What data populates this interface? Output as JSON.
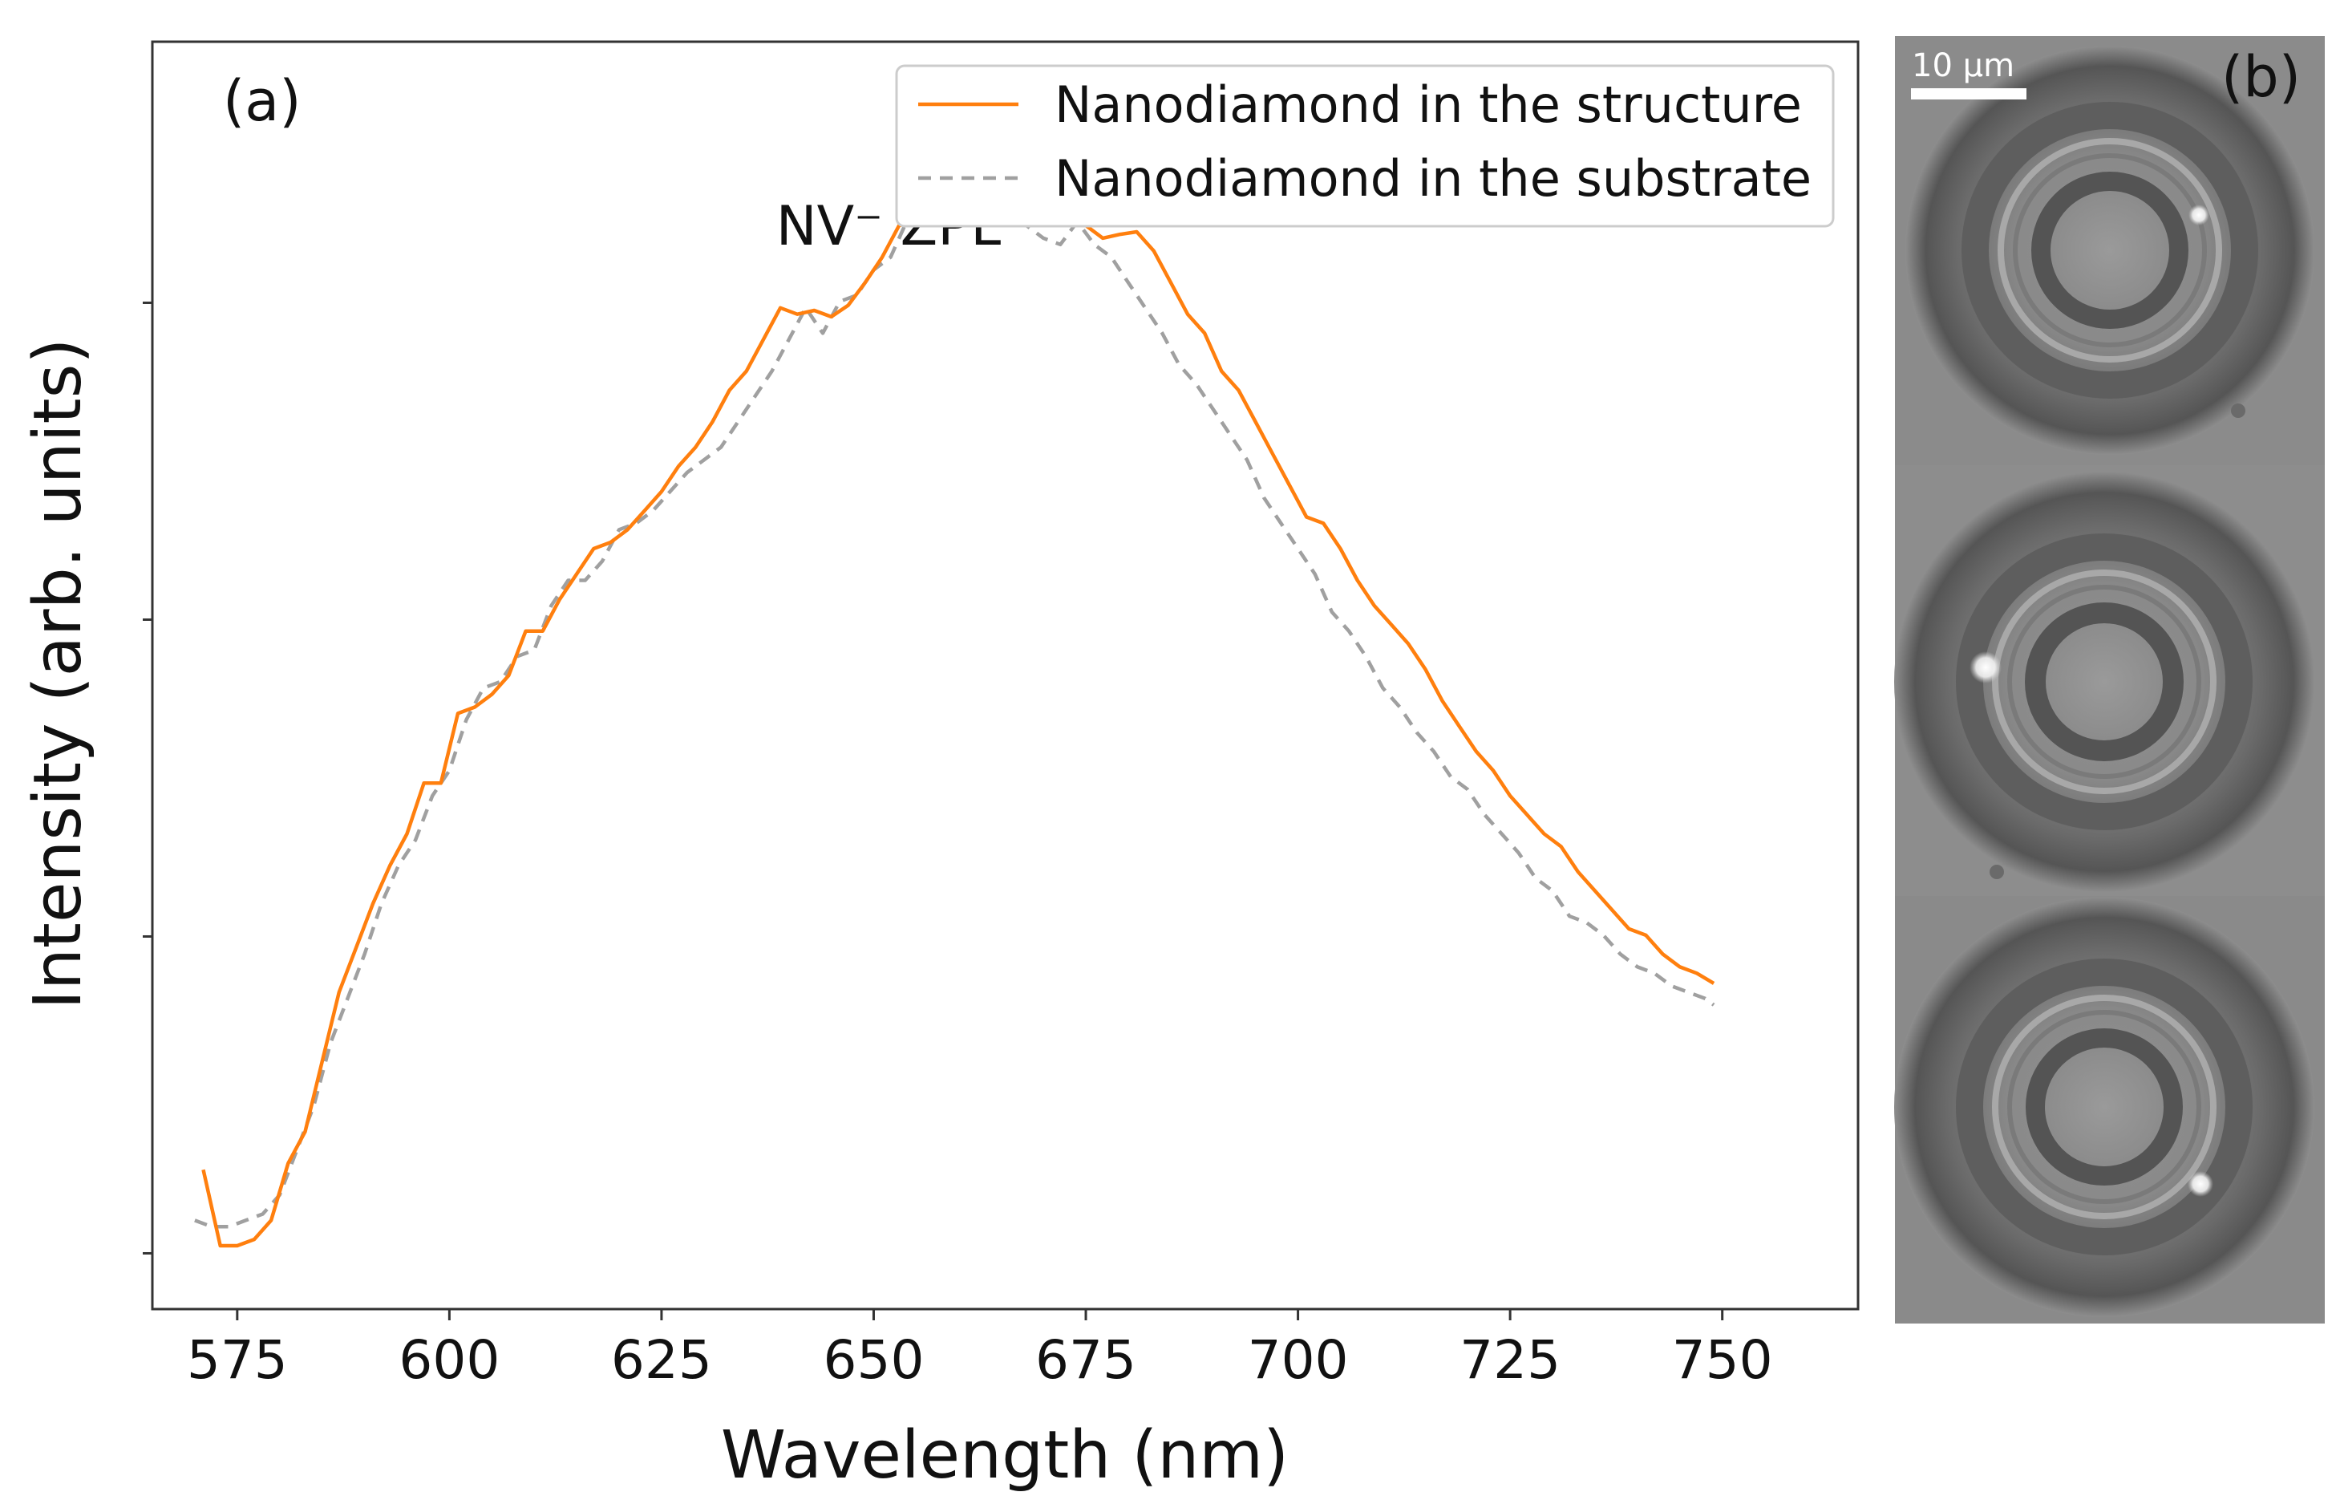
{
  "panel_a_label": "(a)",
  "panel_b_label": "(b)",
  "scale_bar_label": "10 µm",
  "colors": {
    "structure": "#ff7f0e",
    "substrate": "#a0a0a0"
  },
  "chart_data": {
    "type": "line",
    "title": "",
    "xlabel": "Wavelength (nm)",
    "ylabel": "Intensity (arb. units)",
    "xlim": [
      565,
      766
    ],
    "ylim": [
      0,
      1
    ],
    "x_ticks": [
      575,
      600,
      625,
      650,
      675,
      700,
      725,
      750
    ],
    "x_tick_labels": [
      "575",
      "600",
      "625",
      "650",
      "675",
      "700",
      "725",
      "750"
    ],
    "y_ticks": [
      0.044,
      0.294,
      0.544,
      0.794
    ],
    "y_tick_labels_shown": false,
    "legend_position": "top-right",
    "annotation": {
      "text": "NV⁻ ZPL",
      "x": 647,
      "y": 0.84
    },
    "series": [
      {
        "name": "Nanodiamond in the structure",
        "style": "solid",
        "color": "#ff7f0e",
        "x": [
          571,
          572,
          573,
          574,
          575,
          577,
          579,
          581,
          583,
          585,
          587,
          589,
          591,
          593,
          595,
          597,
          599,
          601,
          603,
          605,
          607,
          609,
          611,
          613,
          615,
          617,
          619,
          621,
          623,
          625,
          627,
          629,
          631,
          633,
          635,
          637,
          639,
          641,
          643,
          645,
          647,
          649,
          651,
          653,
          655,
          657,
          659,
          661,
          663,
          665,
          667,
          669,
          671,
          673,
          675,
          677,
          679,
          681,
          683,
          685,
          687,
          689,
          691,
          693,
          695,
          697,
          699,
          701,
          703,
          705,
          707,
          709,
          711,
          713,
          715,
          717,
          719,
          721,
          723,
          725,
          727,
          729,
          731,
          733,
          735,
          737,
          739,
          741,
          743,
          745,
          747,
          749
        ],
        "y": [
          0.11,
          0.08,
          0.05,
          0.05,
          0.05,
          0.055,
          0.07,
          0.115,
          0.14,
          0.195,
          0.25,
          0.285,
          0.32,
          0.35,
          0.375,
          0.415,
          0.415,
          0.47,
          0.475,
          0.485,
          0.5,
          0.535,
          0.535,
          0.56,
          0.58,
          0.6,
          0.605,
          0.615,
          0.63,
          0.645,
          0.665,
          0.68,
          0.7,
          0.725,
          0.74,
          0.765,
          0.79,
          0.785,
          0.788,
          0.783,
          0.792,
          0.81,
          0.83,
          0.855,
          0.858,
          0.865,
          0.87,
          0.875,
          0.875,
          0.87,
          0.86,
          0.855,
          0.858,
          0.86,
          0.855,
          0.845,
          0.848,
          0.85,
          0.835,
          0.81,
          0.785,
          0.77,
          0.74,
          0.725,
          0.7,
          0.675,
          0.65,
          0.625,
          0.62,
          0.6,
          0.575,
          0.555,
          0.54,
          0.525,
          0.505,
          0.48,
          0.46,
          0.44,
          0.425,
          0.405,
          0.39,
          0.375,
          0.365,
          0.345,
          0.33,
          0.315,
          0.3,
          0.295,
          0.28,
          0.27,
          0.265,
          0.257
        ]
      },
      {
        "name": "Nanodiamond in the substrate",
        "style": "dashed",
        "color": "#a0a0a0",
        "x": [
          570,
          572,
          574,
          576,
          578,
          580,
          582,
          584,
          586,
          588,
          590,
          592,
          594,
          596,
          598,
          600,
          602,
          604,
          606,
          608,
          610,
          612,
          614,
          616,
          618,
          620,
          622,
          624,
          626,
          628,
          630,
          632,
          634,
          636,
          638,
          640,
          642,
          644,
          646,
          648,
          650,
          652,
          654,
          656,
          658,
          660,
          662,
          664,
          666,
          668,
          670,
          672,
          674,
          676,
          678,
          680,
          682,
          684,
          686,
          688,
          690,
          692,
          694,
          696,
          698,
          700,
          702,
          704,
          706,
          708,
          710,
          712,
          714,
          716,
          718,
          720,
          722,
          724,
          726,
          728,
          730,
          732,
          734,
          736,
          738,
          740,
          742,
          744,
          746,
          748,
          749
        ],
        "y": [
          0.07,
          0.065,
          0.065,
          0.07,
          0.075,
          0.09,
          0.125,
          0.16,
          0.21,
          0.245,
          0.28,
          0.32,
          0.35,
          0.37,
          0.405,
          0.425,
          0.465,
          0.49,
          0.495,
          0.515,
          0.52,
          0.555,
          0.575,
          0.575,
          0.59,
          0.615,
          0.62,
          0.63,
          0.645,
          0.66,
          0.67,
          0.68,
          0.7,
          0.72,
          0.74,
          0.765,
          0.79,
          0.77,
          0.795,
          0.8,
          0.82,
          0.83,
          0.86,
          0.87,
          0.885,
          0.865,
          0.89,
          0.875,
          0.86,
          0.855,
          0.845,
          0.84,
          0.858,
          0.84,
          0.83,
          0.81,
          0.79,
          0.77,
          0.745,
          0.73,
          0.71,
          0.69,
          0.67,
          0.64,
          0.62,
          0.6,
          0.58,
          0.55,
          0.535,
          0.515,
          0.49,
          0.475,
          0.455,
          0.44,
          0.42,
          0.41,
          0.39,
          0.375,
          0.36,
          0.34,
          0.33,
          0.31,
          0.305,
          0.295,
          0.28,
          0.27,
          0.265,
          0.255,
          0.25,
          0.245,
          0.24
        ]
      }
    ]
  }
}
